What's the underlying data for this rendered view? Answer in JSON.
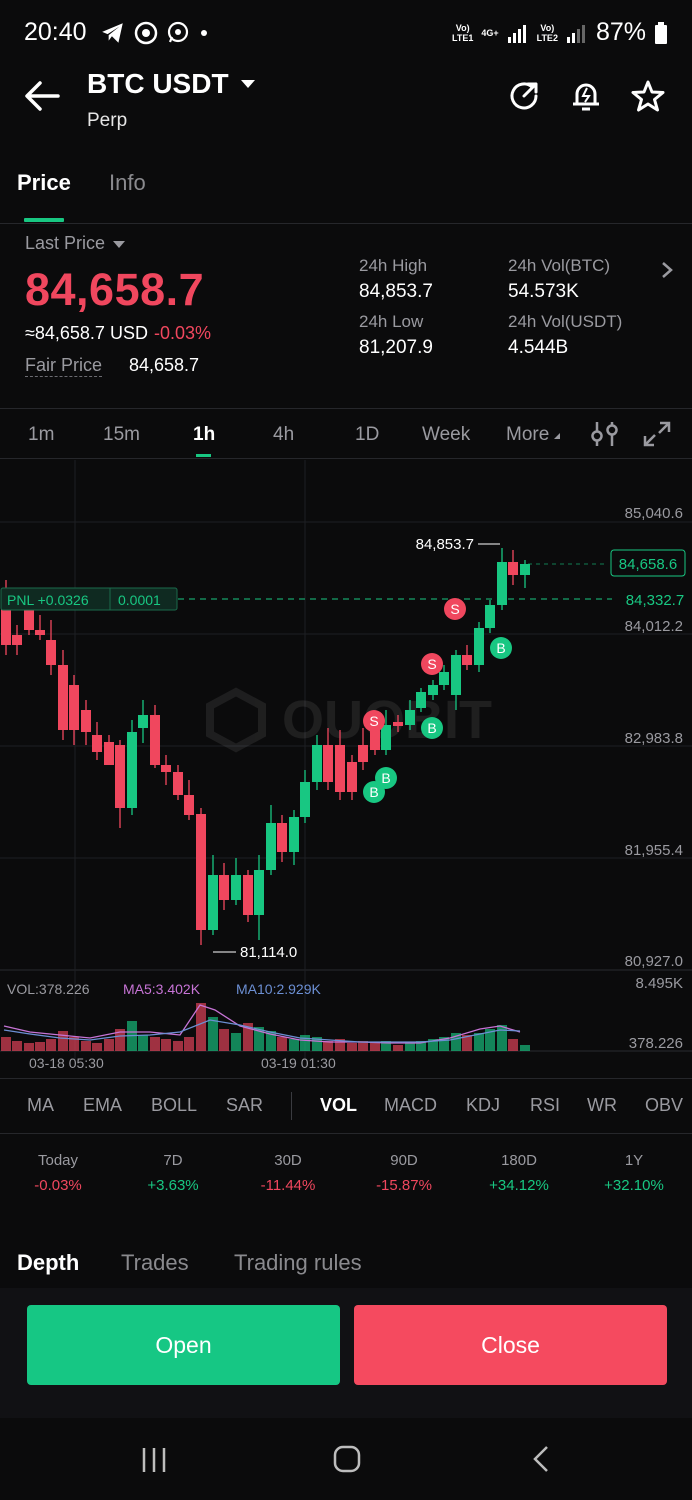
{
  "status_bar": {
    "time": "20:40",
    "battery": "87%",
    "sim1": "LTE1",
    "sim2": "LTE2",
    "net": "4G+"
  },
  "header": {
    "pair": "BTC USDT",
    "subtitle": "Perp"
  },
  "tabs": {
    "price": "Price",
    "info": "Info"
  },
  "price": {
    "last_price_label": "Last Price",
    "last_price": "84,658.7",
    "usd_line": "≈84,658.7 USD",
    "change": "-0.03%",
    "fair_label": "Fair Price",
    "fair_value": "84,658.7"
  },
  "stats": {
    "high_label": "24h High",
    "high": "84,853.7",
    "low_label": "24h Low",
    "low": "81,207.9",
    "vol_btc_label": "24h Vol(BTC)",
    "vol_btc": "54.573K",
    "vol_usdt_label": "24h Vol(USDT)",
    "vol_usdt": "4.544B"
  },
  "timeframes": [
    "1m",
    "15m",
    "1h",
    "4h",
    "1D",
    "Week",
    "More"
  ],
  "active_timeframe": "1h",
  "chart": {
    "y_labels": [
      "85,040.6",
      "84,012.2",
      "82,983.8",
      "81,955.4",
      "80,927.0"
    ],
    "current_price_tag": "84,658.6",
    "position_price_tag": "84,332.7",
    "pnl_label": "PNL +0.0326",
    "pnl_size": "0.0001",
    "high_marker": "84,853.7",
    "low_marker": "81,114.0",
    "vol_label": "VOL:378.226",
    "ma5_label": "MA5:3.402K",
    "ma10_label": "MA10:2.929K",
    "vol_max": "8.495K",
    "vol_current": "378.226",
    "x_labels": [
      "03-18 05:30",
      "03-19 01:30"
    ],
    "watermark": "OUOBIT",
    "sell_marker": "S",
    "buy_marker": "B"
  },
  "indicators": [
    "MA",
    "EMA",
    "BOLL",
    "SAR",
    "VOL",
    "MACD",
    "KDJ",
    "RSI",
    "WR",
    "OBV"
  ],
  "active_indicator": "VOL",
  "performance": [
    {
      "label": "Today",
      "value": "-0.03%",
      "dir": "neg"
    },
    {
      "label": "7D",
      "value": "+3.63%",
      "dir": "pos"
    },
    {
      "label": "30D",
      "value": "-11.44%",
      "dir": "neg"
    },
    {
      "label": "90D",
      "value": "-15.87%",
      "dir": "neg"
    },
    {
      "label": "180D",
      "value": "+34.12%",
      "dir": "pos"
    },
    {
      "label": "1Y",
      "value": "+32.10%",
      "dir": "pos"
    }
  ],
  "bottom_tabs": {
    "depth": "Depth",
    "trades": "Trades",
    "rules": "Trading rules"
  },
  "buttons": {
    "open": "Open",
    "close": "Close"
  },
  "colors": {
    "up": "#18c782",
    "down": "#f0475e",
    "bg": "#0b0b0c"
  }
}
